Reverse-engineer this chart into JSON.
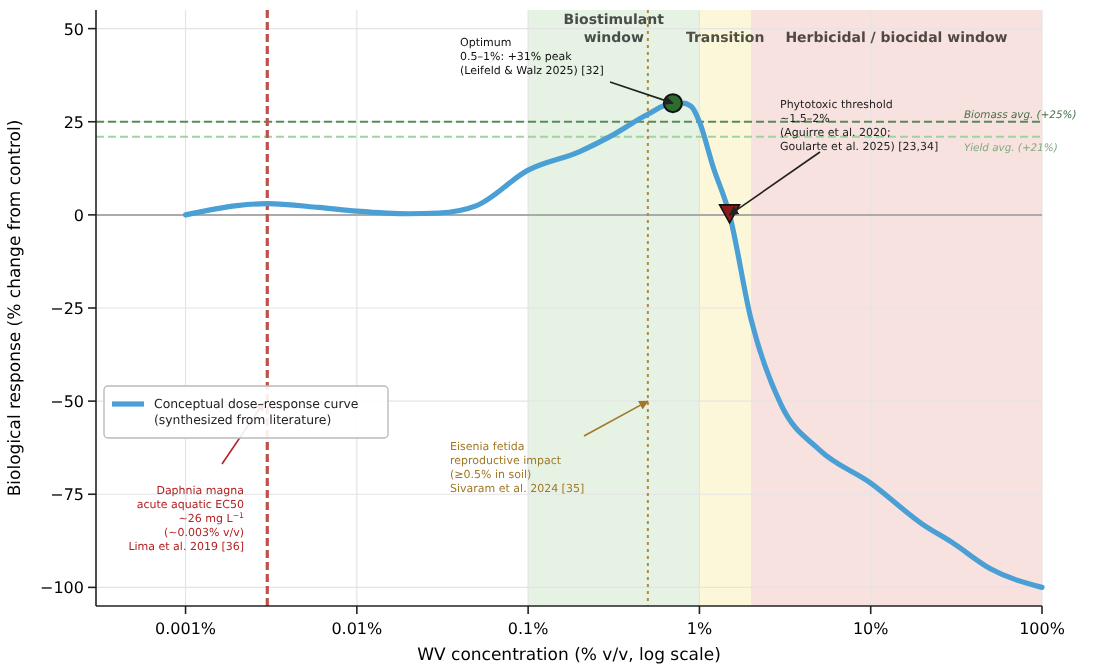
{
  "chart_data": {
    "type": "line",
    "xlabel": "WV concentration (% v/v, log scale)",
    "ylabel": "Biological response (% change from control)",
    "log": "x",
    "grid": true,
    "legend": "left",
    "xlim": [
      0.0003,
      100
    ],
    "xticks": [
      {
        "value": 0.001,
        "label": "0.001%"
      },
      {
        "value": 0.01,
        "label": "0.01%"
      },
      {
        "value": 0.1,
        "label": "0.1%"
      },
      {
        "value": 1,
        "label": "1%"
      },
      {
        "value": 10,
        "label": "10%"
      },
      {
        "value": 100,
        "label": "100%"
      }
    ],
    "ylim": [
      -105,
      55
    ],
    "yticks": [
      {
        "value": -100,
        "label": "−100"
      },
      {
        "value": -75,
        "label": "−75"
      },
      {
        "value": -50,
        "label": "−50"
      },
      {
        "value": -25,
        "label": "−25"
      },
      0,
      25,
      50
    ],
    "series": [
      {
        "name": "Conceptual dose–response curve\n(synthesized from literature)",
        "color": "#4a9fd4",
        "x": [
          0.001,
          0.002,
          0.003,
          0.006,
          0.01,
          0.02,
          0.03,
          0.05,
          0.1,
          0.2,
          0.3,
          0.5,
          0.7,
          0.8,
          0.9,
          1,
          1.2,
          1.5,
          2,
          3,
          5,
          10,
          20,
          30,
          50,
          100
        ],
        "values": [
          0,
          2.5,
          3,
          2,
          1,
          0.3,
          0.5,
          2.5,
          12,
          17,
          21,
          27,
          30,
          30,
          29,
          25,
          13,
          0,
          -28,
          -51,
          -63,
          -72,
          -83,
          -88,
          -95,
          -100
        ]
      },
      {
        "type": "scatter",
        "marker": "circle",
        "color": "#2e6b2e",
        "x": [
          0.7
        ],
        "values": [
          30
        ]
      },
      {
        "type": "scatter",
        "marker": "triangle",
        "color": "#8b1a1a",
        "x": [
          1.5
        ],
        "values": [
          0
        ]
      }
    ],
    "bands": [
      {
        "axis": "x",
        "from": 0.1,
        "to": 1,
        "label": "Biostimulant\nwindow",
        "color": "#e6f2e4"
      },
      {
        "axis": "x",
        "from": 1,
        "to": 2,
        "label": "Transition",
        "color": "#fcf7d9"
      },
      {
        "axis": "x",
        "from": 2,
        "to": 100,
        "label": "Herbicidal / biocidal window",
        "color": "#f8e2df"
      }
    ],
    "ref_lines": [
      {
        "axis": "y",
        "value": 0,
        "color": "#aaaaaa",
        "line_style": "solid"
      },
      {
        "axis": "y",
        "value": 25,
        "label": "Biomass avg. (+25%)",
        "color": "#5a8a5a",
        "line_style": "dashed"
      },
      {
        "axis": "y",
        "value": 21,
        "label": "Yield avg. (+21%)",
        "color": "#9fd49f",
        "line_style": "dashed"
      },
      {
        "axis": "x",
        "value": 0.003,
        "color": "#c0504d",
        "line_style": "dashed"
      },
      {
        "axis": "x",
        "value": 0.5,
        "color": "#b5883a",
        "line_style": "dotted"
      }
    ],
    "annotations": [
      {
        "text": "Optimum\n0.5–1%: +31% peak\n(Leifeld & Walz 2025) [32]",
        "x": 0.7,
        "y": 30
      },
      {
        "text": "Phytotoxic threshold\n~1.5–2%\n(Aguirre et al. 2020;\nGoularte et al. 2025) [23,34]",
        "x": 1.5,
        "y": 0
      },
      "Daphnia magna\nacute aquatic EC50\n~26 mg L$^{−1}$\n(~0.003% v/v)\nLima et al. 2019 [36]",
      {
        "text": "Eisenia fetida\nreproductive impact\n(≥0.5% in soil)\nSivaram et al. 2024 [35]",
        "x": 0.5,
        "y": -50
      }
    ]
  }
}
